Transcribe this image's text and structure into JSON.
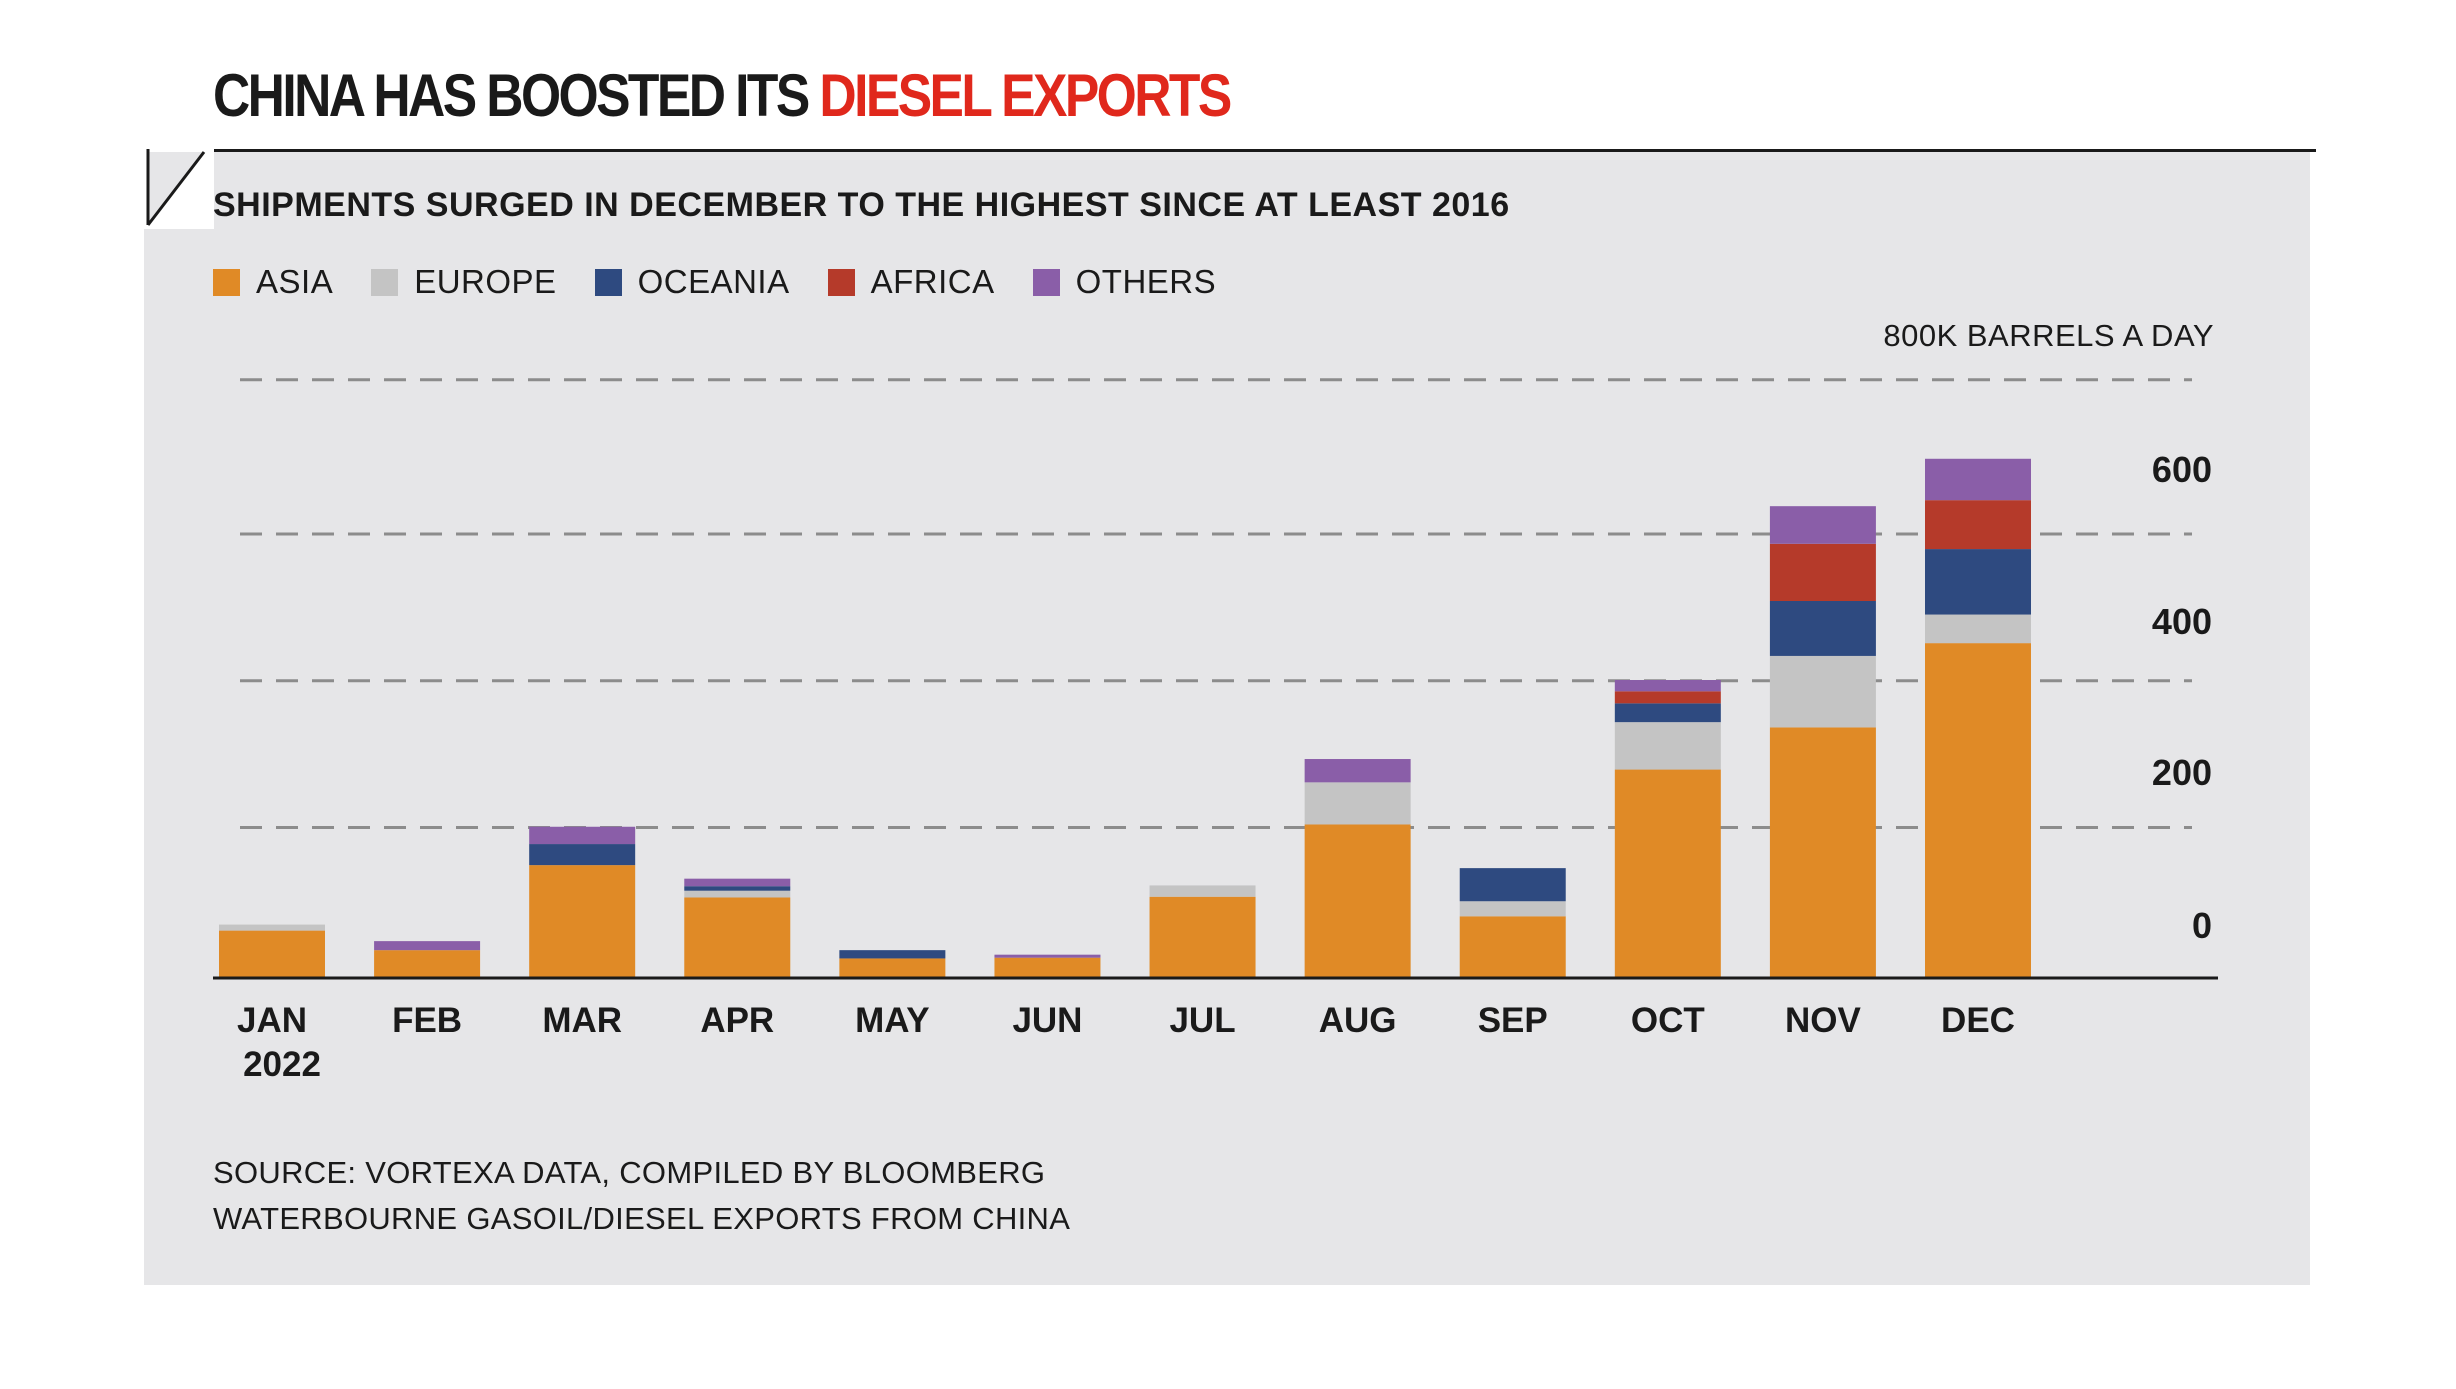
{
  "headline": {
    "part1": "CHINA HAS BOOSTED ITS",
    "part2": "DIESEL EXPORTS"
  },
  "subtitle": "SHIPMENTS SURGED IN DECEMBER TO THE HIGHEST SINCE AT LEAST 2016",
  "unit_label": "800K BARRELS A DAY",
  "source_lines": [
    "SOURCE: VORTEXA DATA, COMPILED BY BLOOMBERG",
    "WATERBOURNE GASOIL/DIESEL EXPORTS FROM CHINA"
  ],
  "colors": {
    "asia": "#e08a26",
    "europe": "#c4c4c4",
    "oceania": "#2e4a80",
    "africa": "#b53a2a",
    "others": "#8a5ea8",
    "headline_accent": "#e0281c",
    "panel": "#e6e6e8"
  },
  "chart_data": {
    "type": "bar",
    "stacked": true,
    "categories": [
      "JAN",
      "FEB",
      "MAR",
      "APR",
      "MAY",
      "JUN",
      "JUL",
      "AUG",
      "SEP",
      "OCT",
      "NOV",
      "DEC"
    ],
    "category_sublabels": [
      "2022",
      "",
      "",
      "",
      "",
      "",
      "",
      "",
      "",
      "",
      "",
      ""
    ],
    "series": [
      {
        "name": "ASIA",
        "color": "#e08a26",
        "values": [
          63,
          37,
          150,
          107,
          26,
          27,
          108,
          204,
          82,
          277,
          333,
          445
        ]
      },
      {
        "name": "EUROPE",
        "color": "#c4c4c4",
        "values": [
          8,
          0,
          0,
          9,
          0,
          0,
          15,
          56,
          20,
          63,
          95,
          38
        ]
      },
      {
        "name": "OCEANIA",
        "color": "#2e4a80",
        "values": [
          0,
          0,
          28,
          6,
          11,
          0,
          0,
          0,
          44,
          25,
          73,
          87
        ]
      },
      {
        "name": "AFRICA",
        "color": "#b53a2a",
        "values": [
          0,
          0,
          0,
          0,
          0,
          0,
          0,
          0,
          0,
          16,
          76,
          65
        ]
      },
      {
        "name": "OTHERS",
        "color": "#8a5ea8",
        "values": [
          0,
          12,
          23,
          10,
          0,
          4,
          0,
          31,
          0,
          15,
          50,
          55
        ]
      }
    ],
    "y_ticks": [
      "0",
      "200",
      "400",
      "600"
    ],
    "y_tick_values": [
      0,
      200,
      400,
      600
    ],
    "gridline_values": [
      200,
      395,
      590,
      795
    ],
    "ylim": [
      0,
      800
    ],
    "grid": "dashed",
    "legend_position": "top-left",
    "y_axis_side": "right"
  }
}
